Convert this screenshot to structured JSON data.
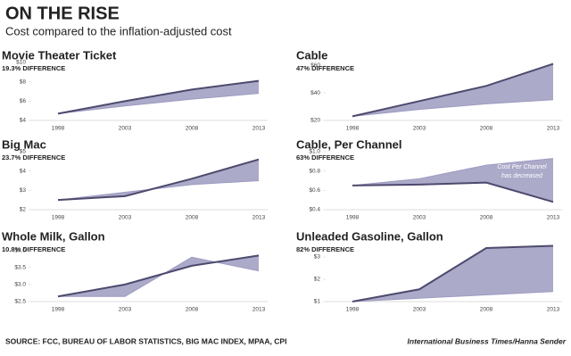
{
  "title": "ON THE RISE",
  "subtitle": "Cost compared to the inflation-adjusted cost",
  "source": "SOURCE: FCC, BUREAU OF LABOR STATISTICS, BIG MAC INDEX, MPAA, CPI",
  "credit": "International Business Times/Hanna Sender",
  "chart_data": [
    {
      "type": "area-band",
      "title": "Movie Theater Ticket",
      "subtitle": "19.3% DIFFERENCE",
      "categories": [
        "1998",
        "2003",
        "2008",
        "2013"
      ],
      "series": [
        {
          "color": "#4d4a6e",
          "values": [
            4.7,
            6.0,
            7.2,
            8.1
          ]
        },
        {
          "color": "#9d9bc0",
          "values": [
            4.7,
            5.5,
            6.2,
            6.8
          ]
        }
      ],
      "ylim": [
        4,
        10
      ],
      "yticks": [
        {
          "value": 10,
          "label": "$10"
        },
        {
          "value": 8,
          "label": "$8"
        },
        {
          "value": 6,
          "label": "$6"
        },
        {
          "value": 4,
          "label": "$4"
        }
      ]
    },
    {
      "type": "area-band",
      "title": "Cable",
      "subtitle": "47% DIFFERENCE",
      "categories": [
        "1998",
        "2003",
        "2008",
        "2013"
      ],
      "series": [
        {
          "color": "#4d4a6e",
          "values": [
            23,
            34,
            45,
            61
          ]
        },
        {
          "color": "#9d9bc0",
          "values": [
            23,
            28,
            32,
            35
          ]
        }
      ],
      "ylim": [
        20,
        62
      ],
      "yticks": [
        {
          "value": 60,
          "label": "$60"
        },
        {
          "value": 40,
          "label": "$40"
        },
        {
          "value": 20,
          "label": "$20"
        }
      ]
    },
    {
      "type": "area-band",
      "title": "Big Mac",
      "subtitle": "23.7% DIFFERENCE",
      "categories": [
        "1998",
        "2003",
        "2008",
        "2013"
      ],
      "series": [
        {
          "color": "#4d4a6e",
          "values": [
            2.5,
            2.7,
            3.6,
            4.6
          ]
        },
        {
          "color": "#9d9bc0",
          "values": [
            2.5,
            2.9,
            3.3,
            3.5
          ]
        }
      ],
      "ylim": [
        2,
        5
      ],
      "yticks": [
        {
          "value": 5,
          "label": "$5"
        },
        {
          "value": 4,
          "label": "$4"
        },
        {
          "value": 3,
          "label": "$3"
        },
        {
          "value": 2,
          "label": "$2"
        }
      ]
    },
    {
      "type": "area-band",
      "title": "Cable, Per Channel",
      "subtitle": "63% DIFFERENCE",
      "annotation": [
        "Cost Per Channel",
        "has decreased"
      ],
      "categories": [
        "1998",
        "2003",
        "2008",
        "2013"
      ],
      "series": [
        {
          "color": "#4d4a6e",
          "values": [
            0.65,
            0.66,
            0.68,
            0.48
          ]
        },
        {
          "color": "#9d9bc0",
          "values": [
            0.65,
            0.72,
            0.86,
            0.93
          ]
        }
      ],
      "ylim": [
        0.4,
        1.0
      ],
      "yticks": [
        {
          "value": 1.0,
          "label": "$1.0"
        },
        {
          "value": 0.8,
          "label": "$0.8"
        },
        {
          "value": 0.6,
          "label": "$0.6"
        },
        {
          "value": 0.4,
          "label": "$0.4"
        }
      ]
    },
    {
      "type": "area-band",
      "title": "Whole Milk, Gallon",
      "subtitle": "10.8% DIFFERENCE",
      "categories": [
        "1998",
        "2003",
        "2008",
        "2013"
      ],
      "series": [
        {
          "color": "#4d4a6e",
          "values": [
            2.65,
            3.0,
            3.55,
            3.85
          ]
        },
        {
          "color": "#9d9bc0",
          "values": [
            2.65,
            2.65,
            3.8,
            3.4
          ]
        }
      ],
      "ylim": [
        2.5,
        4.2
      ],
      "yticks": [
        {
          "value": 4.0,
          "label": "$4.0"
        },
        {
          "value": 3.5,
          "label": "$3.5"
        },
        {
          "value": 3.0,
          "label": "$3.0"
        },
        {
          "value": 2.5,
          "label": "$2.5"
        }
      ]
    },
    {
      "type": "area-band",
      "title": "Unleaded Gasoline, Gallon",
      "subtitle": "82% DIFFERENCE",
      "categories": [
        "1998",
        "2003",
        "2008",
        "2013"
      ],
      "series": [
        {
          "color": "#4d4a6e",
          "values": [
            1.0,
            1.55,
            3.4,
            3.5
          ]
        },
        {
          "color": "#9d9bc0",
          "values": [
            1.0,
            1.15,
            1.3,
            1.45
          ]
        }
      ],
      "ylim": [
        1,
        3.6
      ],
      "yticks": [
        {
          "value": 3,
          "label": "$3"
        },
        {
          "value": 2,
          "label": "$2"
        },
        {
          "value": 1,
          "label": "$1"
        }
      ]
    }
  ]
}
